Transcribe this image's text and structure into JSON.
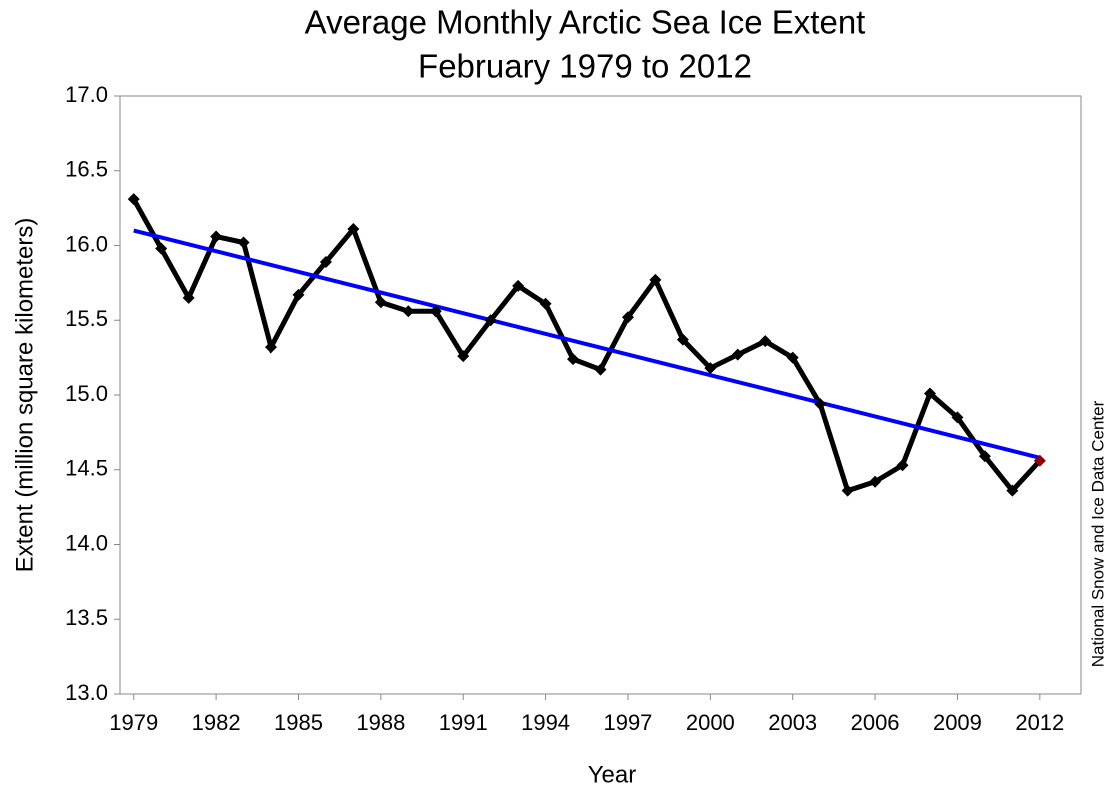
{
  "chart_data": {
    "type": "line",
    "title": "Average Monthly Arctic Sea Ice Extent",
    "subtitle": "February 1979 to 2012",
    "x_label": "Year",
    "y_label": "Extent (million square kilometers)",
    "source": "National Snow and Ice Data Center",
    "x": [
      1979,
      1980,
      1981,
      1982,
      1983,
      1984,
      1985,
      1986,
      1987,
      1988,
      1989,
      1990,
      1991,
      1992,
      1993,
      1994,
      1995,
      1996,
      1997,
      1998,
      1999,
      2000,
      2001,
      2002,
      2003,
      2004,
      2005,
      2006,
      2007,
      2008,
      2009,
      2010,
      2011,
      2012
    ],
    "series": [
      {
        "color": "#000000",
        "last_marker_color": "#8b0000",
        "values": [
          16.31,
          15.98,
          15.65,
          16.06,
          16.02,
          15.32,
          15.67,
          15.89,
          16.11,
          15.62,
          15.56,
          15.56,
          15.26,
          15.5,
          15.73,
          15.61,
          15.24,
          15.17,
          15.52,
          15.77,
          15.37,
          15.18,
          15.27,
          15.36,
          15.25,
          14.94,
          14.36,
          14.42,
          14.53,
          15.01,
          14.85,
          14.59,
          14.36,
          14.56
        ]
      }
    ],
    "trend": {
      "color": "#0000ff",
      "x": [
        1979,
        2012
      ],
      "values": [
        16.1,
        14.58
      ]
    },
    "xlim": [
      1978.5,
      2013.5
    ],
    "xticks": [
      1979,
      1982,
      1985,
      1988,
      1991,
      1994,
      1997,
      2000,
      2003,
      2006,
      2009,
      2012
    ],
    "ylim": [
      13,
      17
    ],
    "yticks": [
      {
        "value": 13,
        "label": "13.0"
      },
      {
        "value": 13.5,
        "label": "13.5"
      },
      {
        "value": 14,
        "label": "14.0"
      },
      {
        "value": 14.5,
        "label": "14.5"
      },
      {
        "value": 15,
        "label": "15.0"
      },
      {
        "value": 15.5,
        "label": "15.5"
      },
      {
        "value": 16,
        "label": "16.0"
      },
      {
        "value": 16.5,
        "label": "16.5"
      },
      {
        "value": 17,
        "label": "17.0"
      }
    ],
    "grid": false
  }
}
